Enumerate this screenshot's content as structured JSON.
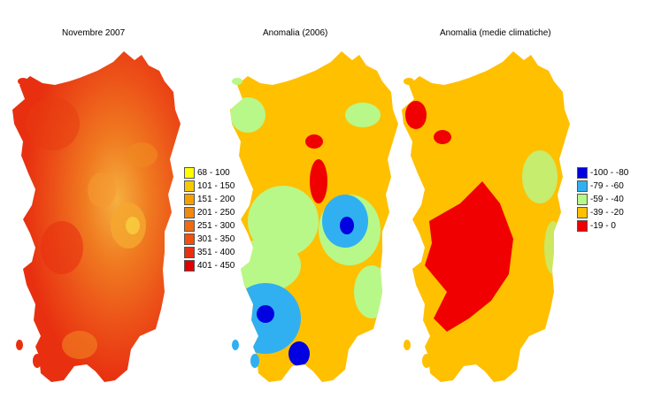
{
  "panels": [
    {
      "title": "Novembre 2007",
      "legend": [
        {
          "label": "68 - 100",
          "color": "#ffff00"
        },
        {
          "label": "101 - 150",
          "color": "#f8c800"
        },
        {
          "label": "151 - 200",
          "color": "#f5a000"
        },
        {
          "label": "201 - 250",
          "color": "#f08a10"
        },
        {
          "label": "251 - 300",
          "color": "#f06a10"
        },
        {
          "label": "301 - 350",
          "color": "#f05010"
        },
        {
          "label": "351 - 400",
          "color": "#e83010"
        },
        {
          "label": "401 - 450",
          "color": "#e00000"
        }
      ]
    },
    {
      "title": "Anomalia (2006)",
      "legend": []
    },
    {
      "title": "Anomalia (medie climatiche)",
      "legend": [
        {
          "label": "-100 - -80",
          "color": "#0000e0"
        },
        {
          "label": "-79 - -60",
          "color": "#30b0f0"
        },
        {
          "label": "-59 - -40",
          "color": "#b8f888"
        },
        {
          "label": "-39 - -20",
          "color": "#ffc000"
        },
        {
          "label": "-19 - 0",
          "color": "#f00000"
        }
      ]
    }
  ]
}
